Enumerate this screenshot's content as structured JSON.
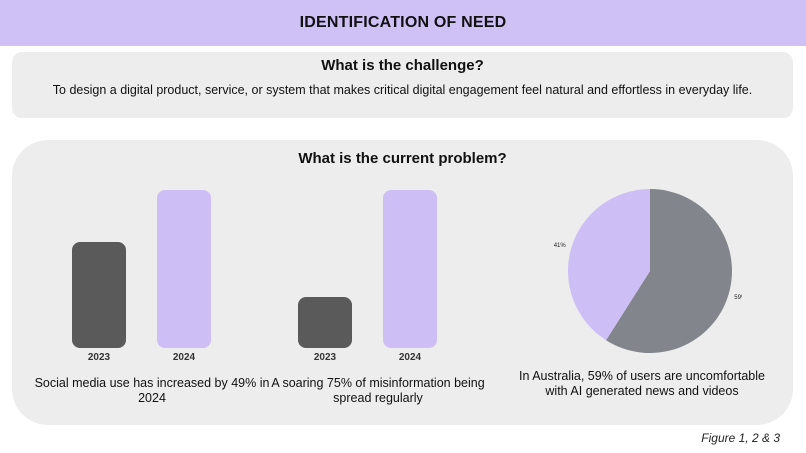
{
  "header": {
    "title": "IDENTIFICATION OF NEED"
  },
  "challenge": {
    "heading": "What is the challenge?",
    "text": "To design a digital product, service, or system that makes critical digital engagement feel natural and effortless in everyday life."
  },
  "problem": {
    "heading": "What is the current problem?",
    "captions": [
      "Social media use has increased by 49% in 2024",
      "A soaring 75% of misinformation being spread regularly",
      "In Australia, 59% of users are uncomfortable with AI generated news and videos"
    ]
  },
  "chart_data": [
    {
      "type": "bar",
      "categories": [
        "2023",
        "2024"
      ],
      "values": [
        0.67,
        1.0
      ],
      "colors": [
        "#5a5a5a",
        "#cdbff6"
      ]
    },
    {
      "type": "bar",
      "categories": [
        "2023",
        "2024"
      ],
      "values": [
        0.32,
        1.0
      ],
      "colors": [
        "#5a5a5a",
        "#cdbff6"
      ]
    },
    {
      "type": "pie",
      "labels": [
        "59%",
        "41%"
      ],
      "values": [
        59,
        41
      ],
      "colors": [
        "#82858c",
        "#cdbff6"
      ]
    }
  ],
  "figure_note": "Figure 1, 2 & 3"
}
